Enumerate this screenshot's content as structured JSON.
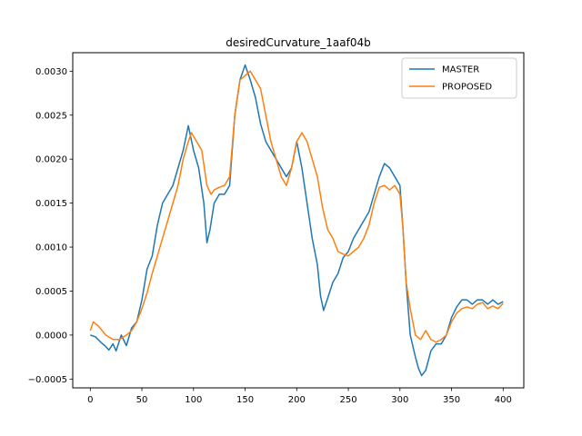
{
  "chart_data": {
    "type": "line",
    "title": "desiredCurvature_1aaf04b",
    "xlabel": "",
    "ylabel": "",
    "xlim": [
      -17,
      420
    ],
    "ylim": [
      -0.0006,
      0.00321
    ],
    "x_ticks": [
      0,
      50,
      100,
      150,
      200,
      250,
      300,
      350,
      400
    ],
    "y_ticks": [
      -0.0005,
      0.0,
      0.0005,
      0.001,
      0.0015,
      0.002,
      0.0025,
      0.003
    ],
    "y_tick_labels": [
      "−0.0005",
      "0.0000",
      "0.0005",
      "0.0010",
      "0.0015",
      "0.0020",
      "0.0025",
      "0.0030"
    ],
    "grid": false,
    "legend_position": "top-right",
    "series": [
      {
        "name": "MASTER",
        "color": "#1f77b4",
        "points": [
          [
            0,
            0.0
          ],
          [
            5,
            -2e-05
          ],
          [
            10,
            -8e-05
          ],
          [
            15,
            -0.00013
          ],
          [
            18,
            -0.00017
          ],
          [
            22,
            -0.0001
          ],
          [
            25,
            -0.00018
          ],
          [
            30,
            0.0
          ],
          [
            35,
            -0.00012
          ],
          [
            40,
            8e-05
          ],
          [
            45,
            0.00015
          ],
          [
            50,
            0.0004
          ],
          [
            55,
            0.00075
          ],
          [
            60,
            0.0009
          ],
          [
            65,
            0.00125
          ],
          [
            70,
            0.0015
          ],
          [
            75,
            0.0016
          ],
          [
            80,
            0.0017
          ],
          [
            85,
            0.0019
          ],
          [
            90,
            0.0021
          ],
          [
            95,
            0.00238
          ],
          [
            100,
            0.0021
          ],
          [
            105,
            0.0019
          ],
          [
            110,
            0.0015
          ],
          [
            113,
            0.00105
          ],
          [
            116,
            0.0012
          ],
          [
            120,
            0.0015
          ],
          [
            125,
            0.0016
          ],
          [
            130,
            0.0016
          ],
          [
            135,
            0.0017
          ],
          [
            140,
            0.0025
          ],
          [
            145,
            0.0029
          ],
          [
            150,
            0.00307
          ],
          [
            155,
            0.0029
          ],
          [
            160,
            0.0027
          ],
          [
            165,
            0.0024
          ],
          [
            170,
            0.0022
          ],
          [
            175,
            0.0021
          ],
          [
            180,
            0.002
          ],
          [
            185,
            0.0019
          ],
          [
            190,
            0.0018
          ],
          [
            195,
            0.0019
          ],
          [
            200,
            0.0022
          ],
          [
            205,
            0.0019
          ],
          [
            210,
            0.0015
          ],
          [
            215,
            0.0011
          ],
          [
            220,
            0.0008
          ],
          [
            223,
            0.00045
          ],
          [
            226,
            0.00028
          ],
          [
            230,
            0.00042
          ],
          [
            235,
            0.0006
          ],
          [
            240,
            0.0007
          ],
          [
            245,
            0.00088
          ],
          [
            250,
            0.00095
          ],
          [
            255,
            0.0011
          ],
          [
            260,
            0.0012
          ],
          [
            265,
            0.0013
          ],
          [
            270,
            0.0014
          ],
          [
            275,
            0.0016
          ],
          [
            280,
            0.0018
          ],
          [
            285,
            0.00195
          ],
          [
            290,
            0.0019
          ],
          [
            295,
            0.0018
          ],
          [
            300,
            0.0017
          ],
          [
            303,
            0.0012
          ],
          [
            306,
            0.0006
          ],
          [
            310,
            0.0
          ],
          [
            315,
            -0.00025
          ],
          [
            318,
            -0.00038
          ],
          [
            321,
            -0.00046
          ],
          [
            325,
            -0.0004
          ],
          [
            330,
            -0.00018
          ],
          [
            335,
            -0.0001
          ],
          [
            340,
            -0.0001
          ],
          [
            345,
            0.0
          ],
          [
            350,
            0.0002
          ],
          [
            355,
            0.00032
          ],
          [
            360,
            0.0004
          ],
          [
            365,
            0.0004
          ],
          [
            370,
            0.00035
          ],
          [
            375,
            0.0004
          ],
          [
            380,
            0.0004
          ],
          [
            385,
            0.00035
          ],
          [
            390,
            0.0004
          ],
          [
            395,
            0.00035
          ],
          [
            400,
            0.00038
          ]
        ]
      },
      {
        "name": "PROPOSED",
        "color": "#ff7f0e",
        "points": [
          [
            0,
            5e-05
          ],
          [
            3,
            0.00015
          ],
          [
            8,
            0.0001
          ],
          [
            15,
            0.0
          ],
          [
            22,
            -5e-05
          ],
          [
            28,
            -5e-05
          ],
          [
            35,
            0.0
          ],
          [
            40,
            5e-05
          ],
          [
            45,
            0.00015
          ],
          [
            50,
            0.0003
          ],
          [
            55,
            0.00048
          ],
          [
            60,
            0.0007
          ],
          [
            65,
            0.0009
          ],
          [
            70,
            0.0011
          ],
          [
            75,
            0.0013
          ],
          [
            80,
            0.0015
          ],
          [
            85,
            0.0017
          ],
          [
            90,
            0.002
          ],
          [
            95,
            0.0022
          ],
          [
            98,
            0.0023
          ],
          [
            103,
            0.0022
          ],
          [
            108,
            0.0021
          ],
          [
            113,
            0.0017
          ],
          [
            117,
            0.0016
          ],
          [
            120,
            0.00165
          ],
          [
            125,
            0.00168
          ],
          [
            130,
            0.0017
          ],
          [
            135,
            0.0018
          ],
          [
            140,
            0.0025
          ],
          [
            145,
            0.0029
          ],
          [
            150,
            0.00295
          ],
          [
            155,
            0.003
          ],
          [
            160,
            0.0029
          ],
          [
            165,
            0.0028
          ],
          [
            170,
            0.0025
          ],
          [
            175,
            0.0022
          ],
          [
            180,
            0.002
          ],
          [
            185,
            0.0018
          ],
          [
            190,
            0.0017
          ],
          [
            195,
            0.0019
          ],
          [
            200,
            0.0022
          ],
          [
            205,
            0.0023
          ],
          [
            210,
            0.0022
          ],
          [
            215,
            0.002
          ],
          [
            220,
            0.0018
          ],
          [
            225,
            0.00145
          ],
          [
            230,
            0.0012
          ],
          [
            235,
            0.0011
          ],
          [
            240,
            0.00095
          ],
          [
            245,
            0.00092
          ],
          [
            250,
            0.0009
          ],
          [
            255,
            0.00095
          ],
          [
            260,
            0.001
          ],
          [
            265,
            0.0011
          ],
          [
            270,
            0.00125
          ],
          [
            275,
            0.0015
          ],
          [
            280,
            0.00168
          ],
          [
            285,
            0.0017
          ],
          [
            290,
            0.00165
          ],
          [
            295,
            0.0017
          ],
          [
            300,
            0.0016
          ],
          [
            303,
            0.0012
          ],
          [
            306,
            0.0006
          ],
          [
            310,
            0.0003
          ],
          [
            315,
            0.0
          ],
          [
            320,
            -5e-05
          ],
          [
            325,
            5e-05
          ],
          [
            330,
            -5e-05
          ],
          [
            335,
            -8e-05
          ],
          [
            340,
            -5e-05
          ],
          [
            345,
            0.0
          ],
          [
            350,
            0.00015
          ],
          [
            355,
            0.00025
          ],
          [
            360,
            0.0003
          ],
          [
            365,
            0.00032
          ],
          [
            370,
            0.0003
          ],
          [
            375,
            0.00035
          ],
          [
            380,
            0.00037
          ],
          [
            385,
            0.0003
          ],
          [
            390,
            0.00033
          ],
          [
            395,
            0.0003
          ],
          [
            400,
            0.00036
          ]
        ]
      }
    ]
  }
}
